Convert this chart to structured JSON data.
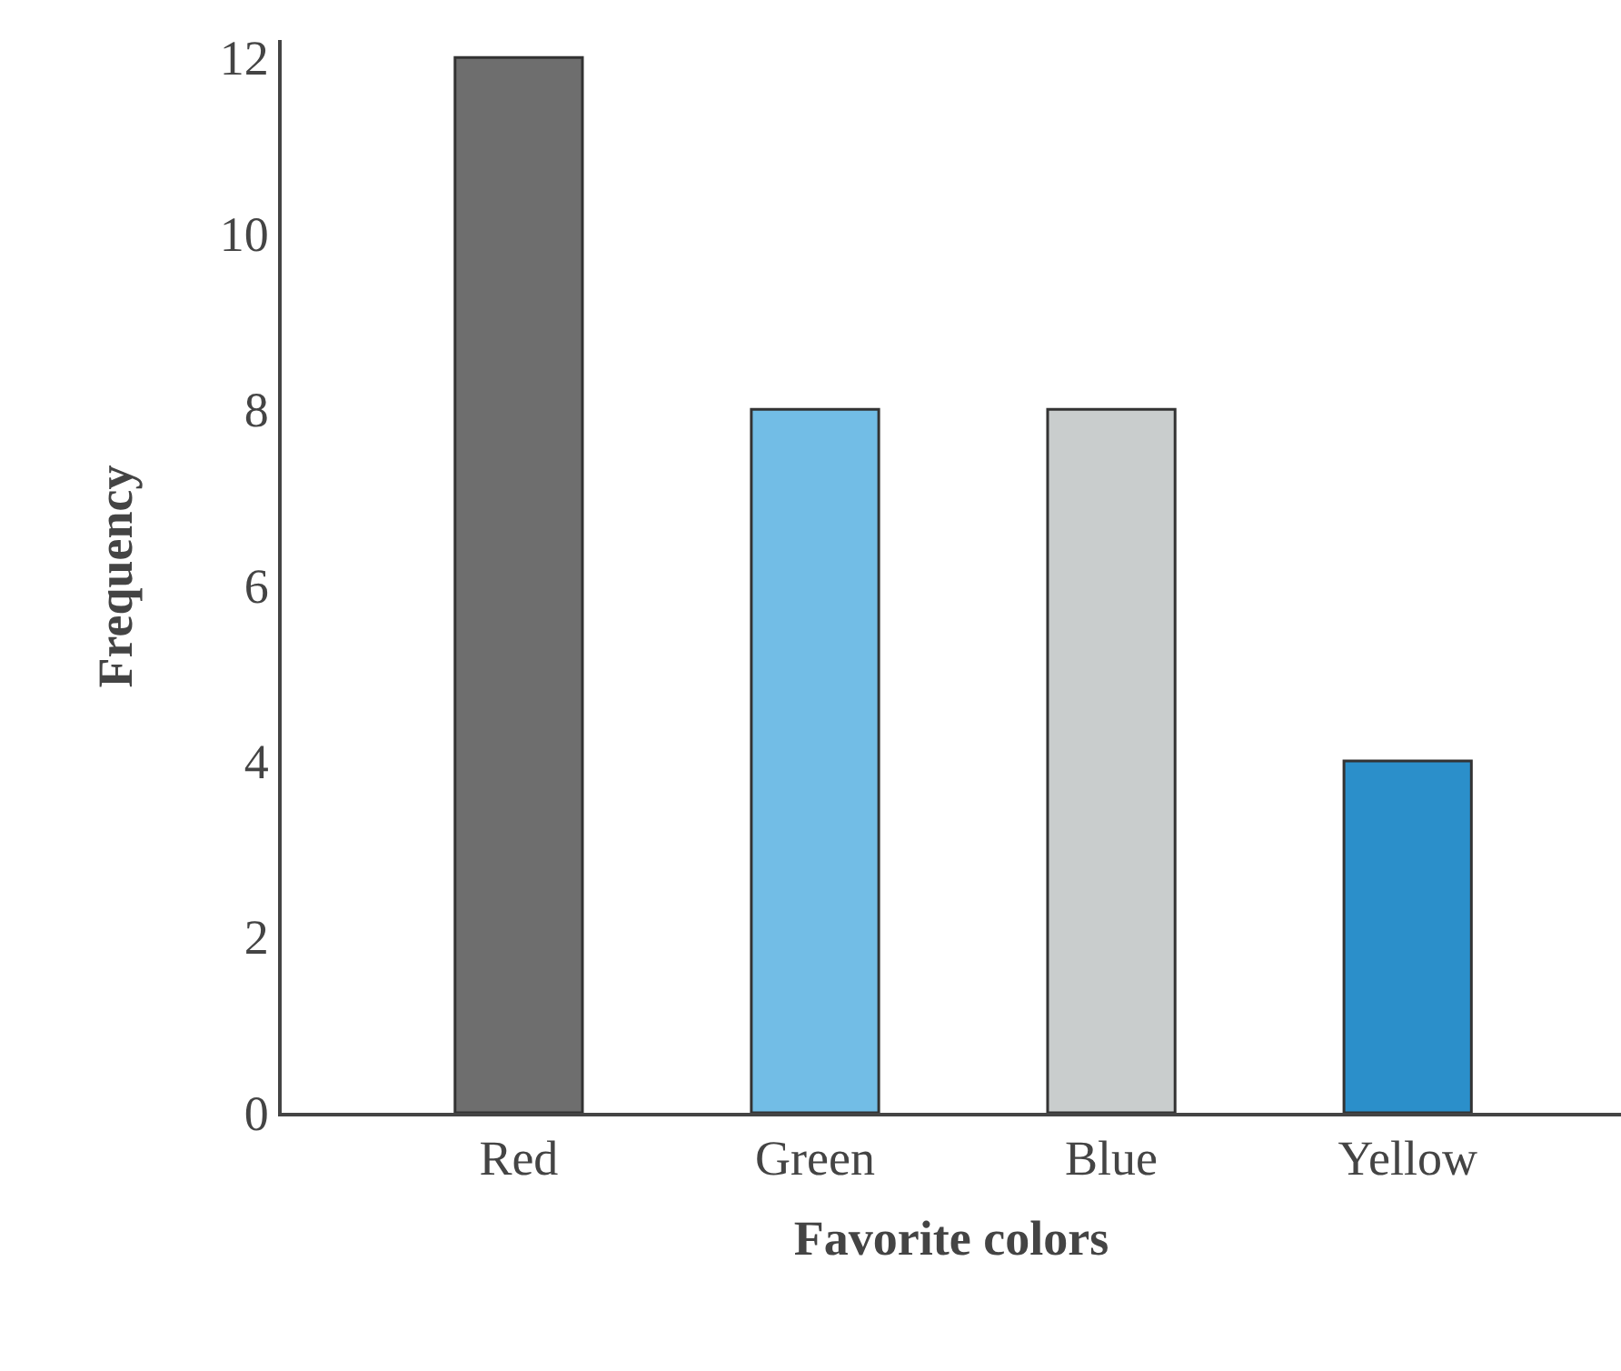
{
  "chart_data": {
    "type": "bar",
    "xlabel": "Favorite colors",
    "ylabel": "Frequency",
    "categories": [
      "Red",
      "Green",
      "Blue",
      "Yellow"
    ],
    "values": [
      12,
      8,
      8,
      4
    ],
    "colors": [
      "#6e6e6e",
      "#72bde6",
      "#c9cdcd",
      "#2b8fca"
    ],
    "ylim": [
      0,
      12.2
    ],
    "yticks": [
      0,
      2,
      4,
      6,
      8,
      10,
      12
    ],
    "grid": false,
    "legend": false
  }
}
